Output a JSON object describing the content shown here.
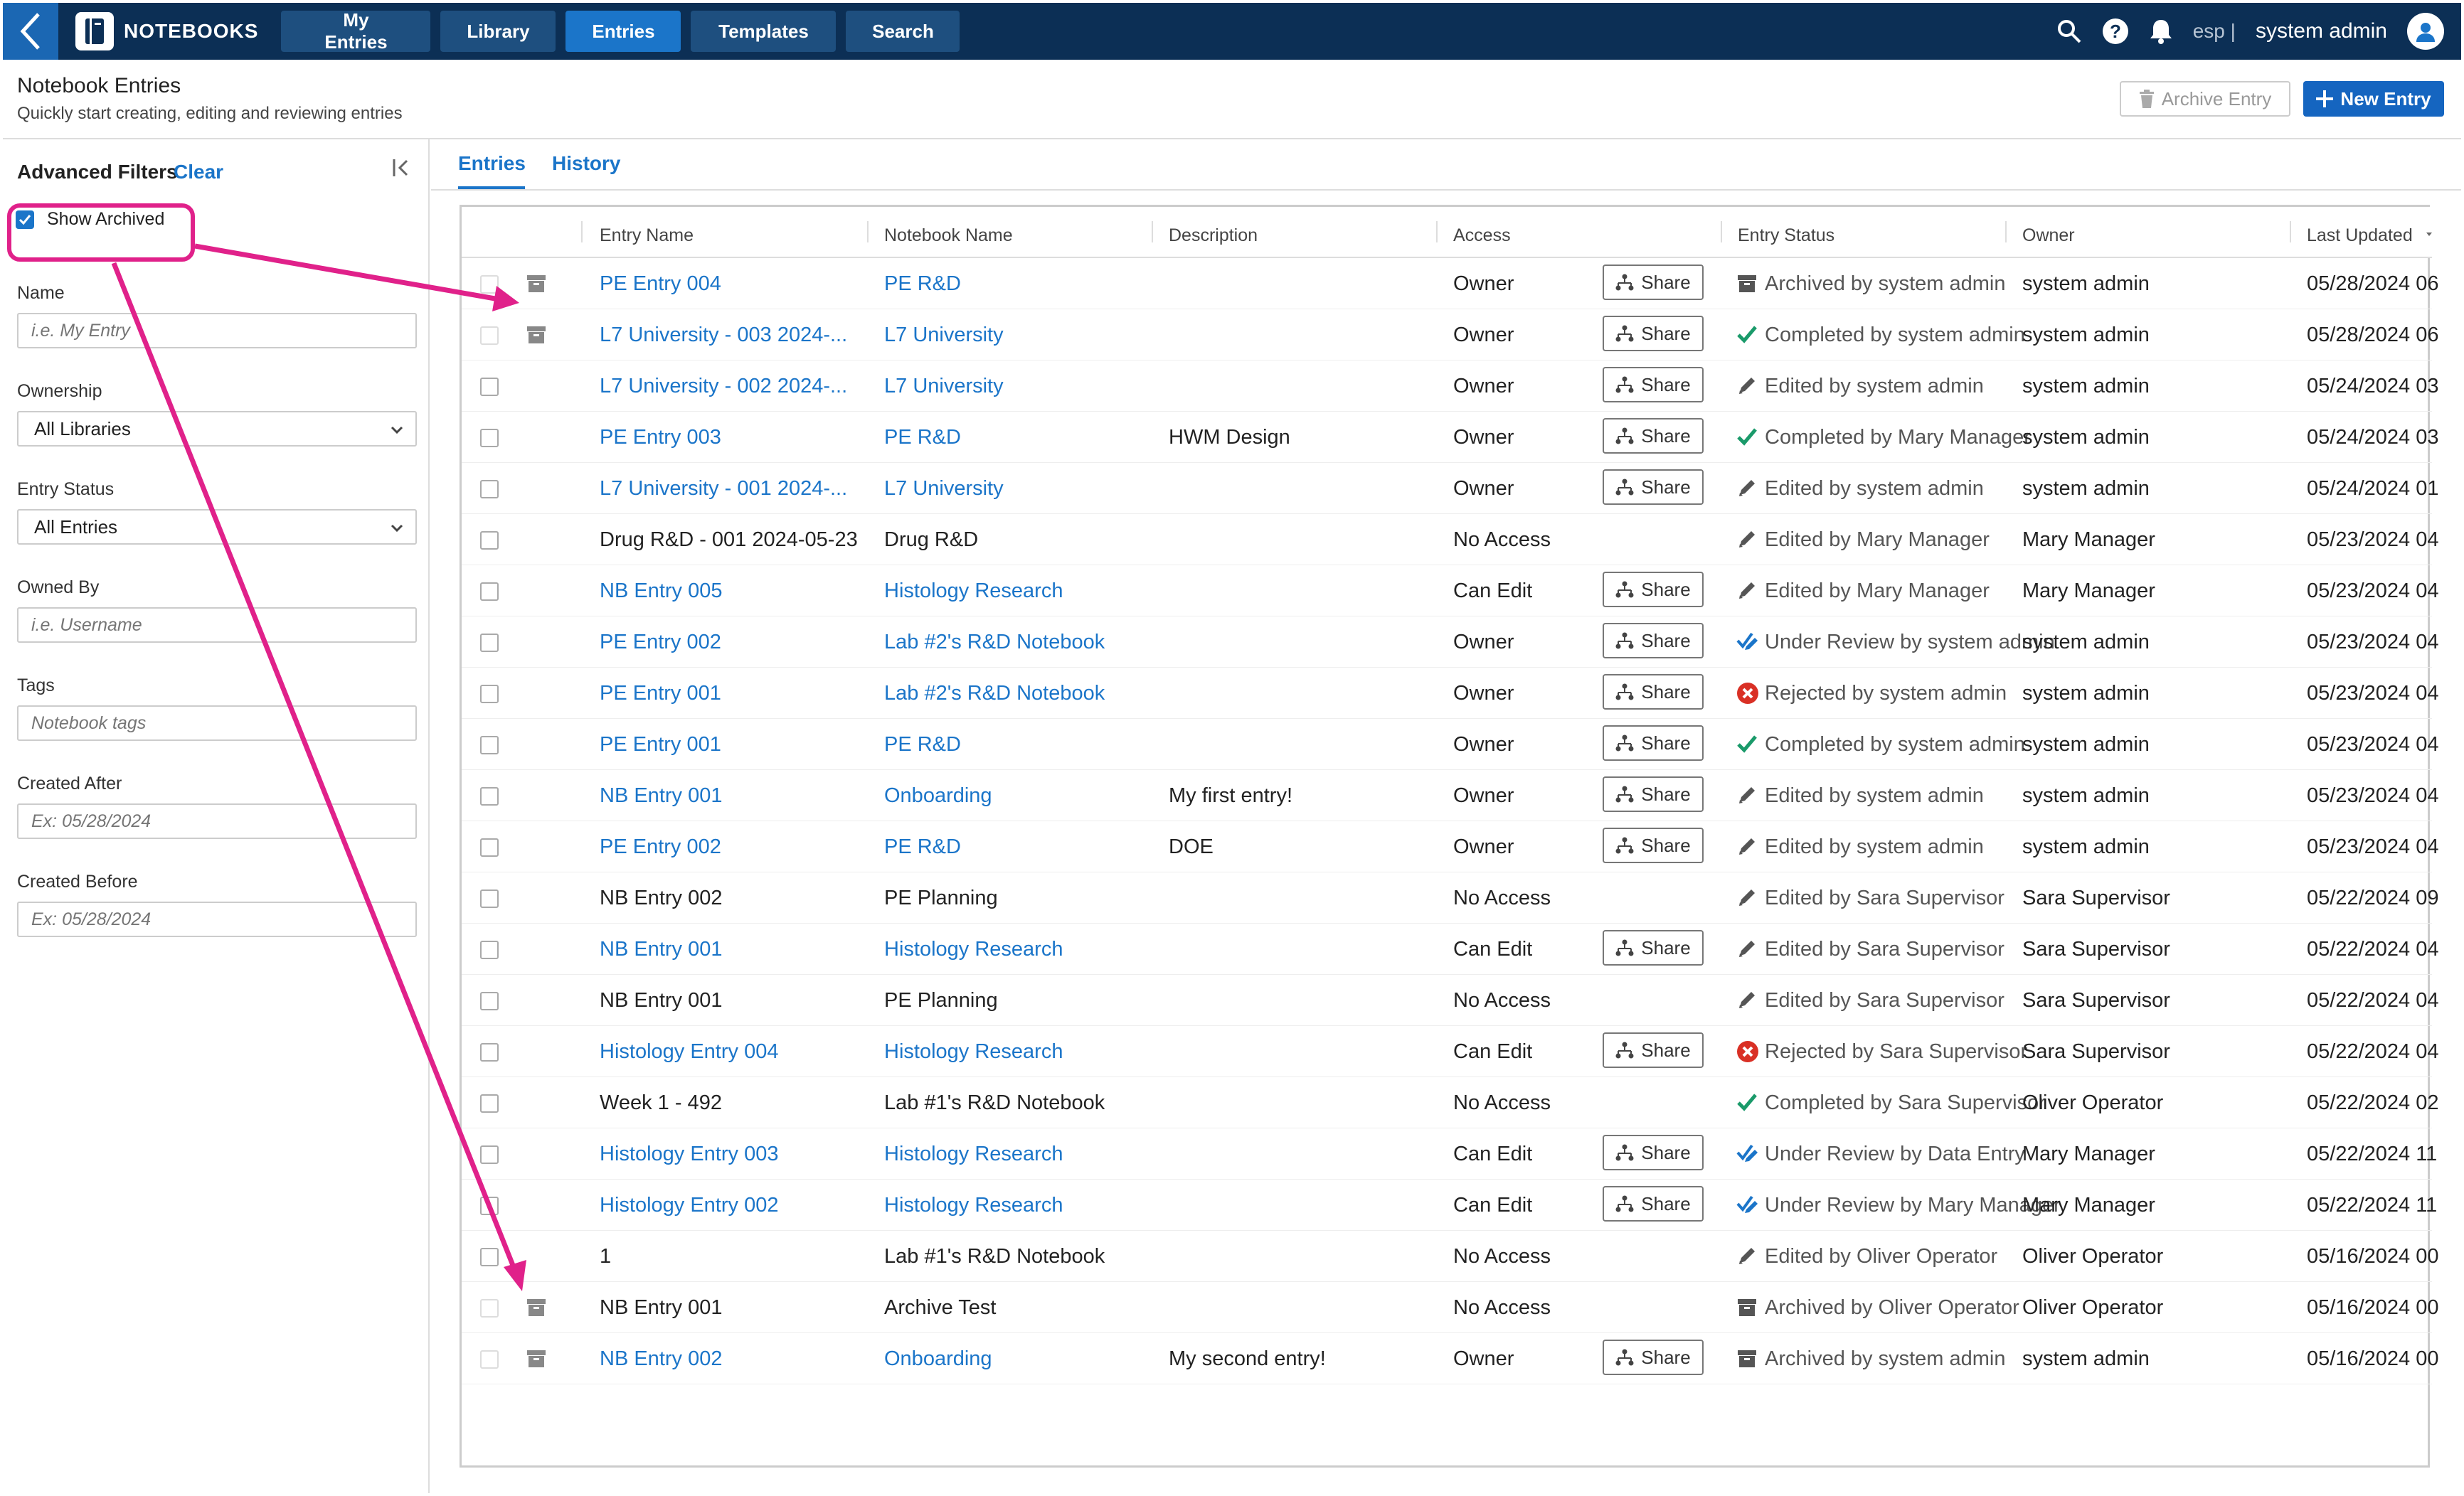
{
  "topbar": {
    "brand": "NOTEBOOKS",
    "nav": [
      "My Entries",
      "Library",
      "Entries",
      "Templates",
      "Search"
    ],
    "active_nav": "Entries",
    "locale": "esp |",
    "user": "system admin"
  },
  "header": {
    "title": "Notebook Entries",
    "subtitle": "Quickly start creating, editing and reviewing entries",
    "archive_label": "Archive Entry",
    "new_label": "New Entry"
  },
  "filters": {
    "title": "Advanced Filters",
    "clear": "Clear",
    "show_archived": "Show Archived",
    "show_archived_checked": true,
    "name_label": "Name",
    "name_placeholder": "i.e. My Entry",
    "ownership_label": "Ownership",
    "ownership_value": "All Libraries",
    "status_label": "Entry Status",
    "status_value": "All Entries",
    "owned_by_label": "Owned By",
    "owned_by_placeholder": "i.e. Username",
    "tags_label": "Tags",
    "tags_placeholder": "Notebook tags",
    "created_after_label": "Created After",
    "created_after_placeholder": "Ex: 05/28/2024",
    "created_before_label": "Created Before",
    "created_before_placeholder": "Ex: 05/28/2024"
  },
  "tabs": {
    "entries": "Entries",
    "history": "History"
  },
  "table": {
    "columns": [
      "Entry Name",
      "Notebook Name",
      "Description",
      "Access",
      "Entry Status",
      "Owner",
      "Last Updated"
    ],
    "share_label": "Share",
    "rows": [
      {
        "name": "PE Entry 004",
        "notebook": "PE R&D",
        "desc": "",
        "access": "Owner",
        "share": true,
        "status": "Archived by system admin",
        "status_icon": "archive",
        "owner": "system admin",
        "updated": "05/28/2024 06",
        "archived": true,
        "link": true
      },
      {
        "name": "L7 University - 003 2024-...",
        "notebook": "L7 University",
        "desc": "",
        "access": "Owner",
        "share": true,
        "status": "Completed by system admin",
        "status_icon": "check",
        "owner": "system admin",
        "updated": "05/28/2024 06",
        "archived": true,
        "link": true
      },
      {
        "name": "L7 University - 002 2024-...",
        "notebook": "L7 University",
        "desc": "",
        "access": "Owner",
        "share": true,
        "status": "Edited by system admin",
        "status_icon": "pencil",
        "owner": "system admin",
        "updated": "05/24/2024 03",
        "archived": false,
        "link": true
      },
      {
        "name": "PE Entry 003",
        "notebook": "PE R&D",
        "desc": "HWM Design",
        "access": "Owner",
        "share": true,
        "status": "Completed by Mary Manager",
        "status_icon": "check",
        "owner": "system admin",
        "updated": "05/24/2024 03",
        "archived": false,
        "link": true
      },
      {
        "name": "L7 University - 001 2024-...",
        "notebook": "L7 University",
        "desc": "",
        "access": "Owner",
        "share": true,
        "status": "Edited by system admin",
        "status_icon": "pencil",
        "owner": "system admin",
        "updated": "05/24/2024 01",
        "archived": false,
        "link": true
      },
      {
        "name": "Drug R&D - 001 2024-05-23",
        "notebook": "Drug R&D",
        "desc": "",
        "access": "No Access",
        "share": false,
        "status": "Edited by Mary Manager",
        "status_icon": "pencil",
        "owner": "Mary Manager",
        "updated": "05/23/2024 04",
        "archived": false,
        "link": false
      },
      {
        "name": "NB Entry 005",
        "notebook": "Histology Research",
        "desc": "",
        "access": "Can Edit",
        "share": true,
        "status": "Edited by Mary Manager",
        "status_icon": "pencil",
        "owner": "Mary Manager",
        "updated": "05/23/2024 04",
        "archived": false,
        "link": true
      },
      {
        "name": "PE Entry 002",
        "notebook": "Lab #2's R&D Notebook",
        "desc": "",
        "access": "Owner",
        "share": true,
        "status": "Under Review by system admin",
        "status_icon": "review",
        "owner": "system admin",
        "updated": "05/23/2024 04",
        "archived": false,
        "link": true
      },
      {
        "name": "PE Entry 001",
        "notebook": "Lab #2's R&D Notebook",
        "desc": "",
        "access": "Owner",
        "share": true,
        "status": "Rejected by system admin",
        "status_icon": "reject",
        "owner": "system admin",
        "updated": "05/23/2024 04",
        "archived": false,
        "link": true
      },
      {
        "name": "PE Entry 001",
        "notebook": "PE R&D",
        "desc": "",
        "access": "Owner",
        "share": true,
        "status": "Completed by system admin",
        "status_icon": "check",
        "owner": "system admin",
        "updated": "05/23/2024 04",
        "archived": false,
        "link": true
      },
      {
        "name": "NB Entry 001",
        "notebook": "Onboarding",
        "desc": "My first entry!",
        "access": "Owner",
        "share": true,
        "status": "Edited by system admin",
        "status_icon": "pencil",
        "owner": "system admin",
        "updated": "05/23/2024 04",
        "archived": false,
        "link": true
      },
      {
        "name": "PE Entry 002",
        "notebook": "PE R&D",
        "desc": "DOE",
        "access": "Owner",
        "share": true,
        "status": "Edited by system admin",
        "status_icon": "pencil",
        "owner": "system admin",
        "updated": "05/23/2024 04",
        "archived": false,
        "link": true
      },
      {
        "name": "NB Entry 002",
        "notebook": "PE Planning",
        "desc": "",
        "access": "No Access",
        "share": false,
        "status": "Edited by Sara Supervisor",
        "status_icon": "pencil",
        "owner": "Sara Supervisor",
        "updated": "05/22/2024 09",
        "archived": false,
        "link": false
      },
      {
        "name": "NB Entry 001",
        "notebook": "Histology Research",
        "desc": "",
        "access": "Can Edit",
        "share": true,
        "status": "Edited by Sara Supervisor",
        "status_icon": "pencil",
        "owner": "Sara Supervisor",
        "updated": "05/22/2024 04",
        "archived": false,
        "link": true
      },
      {
        "name": "NB Entry 001",
        "notebook": "PE Planning",
        "desc": "",
        "access": "No Access",
        "share": false,
        "status": "Edited by Sara Supervisor",
        "status_icon": "pencil",
        "owner": "Sara Supervisor",
        "updated": "05/22/2024 04",
        "archived": false,
        "link": false
      },
      {
        "name": "Histology Entry 004",
        "notebook": "Histology Research",
        "desc": "",
        "access": "Can Edit",
        "share": true,
        "status": "Rejected by Sara Supervisor",
        "status_icon": "reject",
        "owner": "Sara Supervisor",
        "updated": "05/22/2024 04",
        "archived": false,
        "link": true
      },
      {
        "name": "Week 1 - 492",
        "notebook": "Lab #1's R&D Notebook",
        "desc": "",
        "access": "No Access",
        "share": false,
        "status": "Completed by Sara Supervisor",
        "status_icon": "check",
        "owner": "Oliver Operator",
        "updated": "05/22/2024 02",
        "archived": false,
        "link": false
      },
      {
        "name": "Histology Entry 003",
        "notebook": "Histology Research",
        "desc": "",
        "access": "Can Edit",
        "share": true,
        "status": "Under Review by Data Entry",
        "status_icon": "review",
        "owner": "Mary Manager",
        "updated": "05/22/2024 11",
        "archived": false,
        "link": true
      },
      {
        "name": "Histology Entry 002",
        "notebook": "Histology Research",
        "desc": "",
        "access": "Can Edit",
        "share": true,
        "status": "Under Review by Mary Manager",
        "status_icon": "review",
        "owner": "Mary Manager",
        "updated": "05/22/2024 11",
        "archived": false,
        "link": true
      },
      {
        "name": "1",
        "notebook": "Lab #1's R&D Notebook",
        "desc": "",
        "access": "No Access",
        "share": false,
        "status": "Edited by Oliver Operator",
        "status_icon": "pencil",
        "owner": "Oliver Operator",
        "updated": "05/16/2024 00",
        "archived": false,
        "link": false
      },
      {
        "name": "NB Entry 001",
        "notebook": "Archive Test",
        "desc": "",
        "access": "No Access",
        "share": false,
        "status": "Archived by Oliver Operator",
        "status_icon": "archive",
        "owner": "Oliver Operator",
        "updated": "05/16/2024 00",
        "archived": true,
        "link": false
      },
      {
        "name": "NB Entry 002",
        "notebook": "Onboarding",
        "desc": "My second entry!",
        "access": "Owner",
        "share": true,
        "status": "Archived by system admin",
        "status_icon": "archive",
        "owner": "system admin",
        "updated": "05/16/2024 00",
        "archived": true,
        "link": true
      }
    ]
  },
  "colors": {
    "primary": "#1b75c9",
    "topbar": "#0c2f55",
    "annotation": "#e0218a",
    "check": "#1a9a6a",
    "reject": "#d93025"
  }
}
